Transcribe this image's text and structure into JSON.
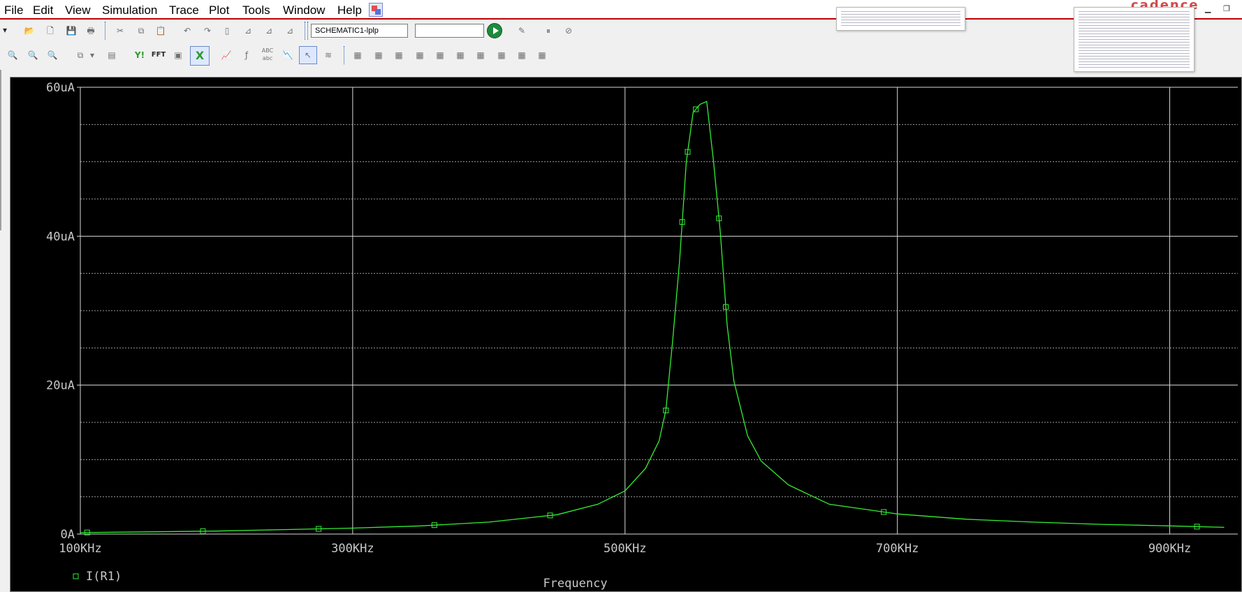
{
  "menu": {
    "items": [
      "File",
      "Edit",
      "View",
      "Simulation",
      "Trace",
      "Plot",
      "Tools",
      "Window",
      "Help"
    ]
  },
  "brand": {
    "text": "cadence"
  },
  "toolbar": {
    "profile_value": "SCHEMATIC1-lplp",
    "search_value": "",
    "fft_label": "FFT",
    "abc_label": "ABC\nabc",
    "yi_label": "Y!"
  },
  "colors": {
    "plot_bg": "#000000",
    "trace": "#33ee33",
    "grid": "#d8d8d8",
    "axis_text": "#c8c8c8",
    "menubar_underline": "#c00000"
  },
  "chart_data": {
    "type": "line",
    "xlabel": "Frequency",
    "ylabel": "",
    "xlim": [
      100,
      950
    ],
    "ylim": [
      0,
      60
    ],
    "x_unit": "KHz",
    "y_unit": "uA",
    "x_ticks": [
      100,
      300,
      500,
      700,
      900
    ],
    "x_tick_labels": [
      "100KHz",
      "300KHz",
      "500KHz",
      "700KHz",
      "900KHz"
    ],
    "y_ticks": [
      0,
      20,
      40,
      60
    ],
    "y_tick_labels": [
      "0A",
      "20uA",
      "40uA",
      "60uA"
    ],
    "y_minor_ticks": [
      5,
      10,
      15,
      25,
      30,
      35,
      45,
      50,
      55
    ],
    "x_minor_ticks": [],
    "grid": true,
    "legend_position": "bottom-left",
    "series": [
      {
        "name": "I(R1)",
        "marker": "square",
        "x": [
          100,
          150,
          200,
          250,
          300,
          350,
          400,
          450,
          480,
          500,
          515,
          525,
          530,
          535,
          540,
          545,
          550,
          555,
          560,
          565,
          570,
          575,
          580,
          590,
          600,
          620,
          650,
          700,
          750,
          800,
          850,
          900,
          940
        ],
        "y": [
          0.2,
          0.3,
          0.4,
          0.6,
          0.8,
          1.1,
          1.6,
          2.6,
          4.0,
          5.8,
          8.8,
          12.5,
          16.6,
          26.0,
          36.5,
          50.0,
          56.6,
          57.7,
          58.1,
          50.0,
          40.5,
          28.0,
          20.5,
          13.2,
          9.8,
          6.6,
          4.0,
          2.7,
          2.0,
          1.6,
          1.3,
          1.1,
          0.9
        ]
      }
    ],
    "marker_points": [
      {
        "x": 101,
        "y": 0.2
      },
      {
        "x": 215,
        "y": 0.3
      },
      {
        "x": 330,
        "y": 0.4
      },
      {
        "x": 445,
        "y": 0.6
      },
      {
        "x": 560,
        "y": 1.2
      },
      {
        "x": 675,
        "y": 3.0
      },
      {
        "x": 778,
        "y": 16.6
      },
      {
        "x": 786,
        "y": 36.5
      },
      {
        "x": 792,
        "y": 56.6
      },
      {
        "x": 810,
        "y": 40.5
      },
      {
        "x": 815,
        "y": 20.5
      },
      {
        "x": 930,
        "y": 4.0
      },
      {
        "x": 1044,
        "y": 1.4
      }
    ],
    "marker_x_unit": "plot_index"
  }
}
